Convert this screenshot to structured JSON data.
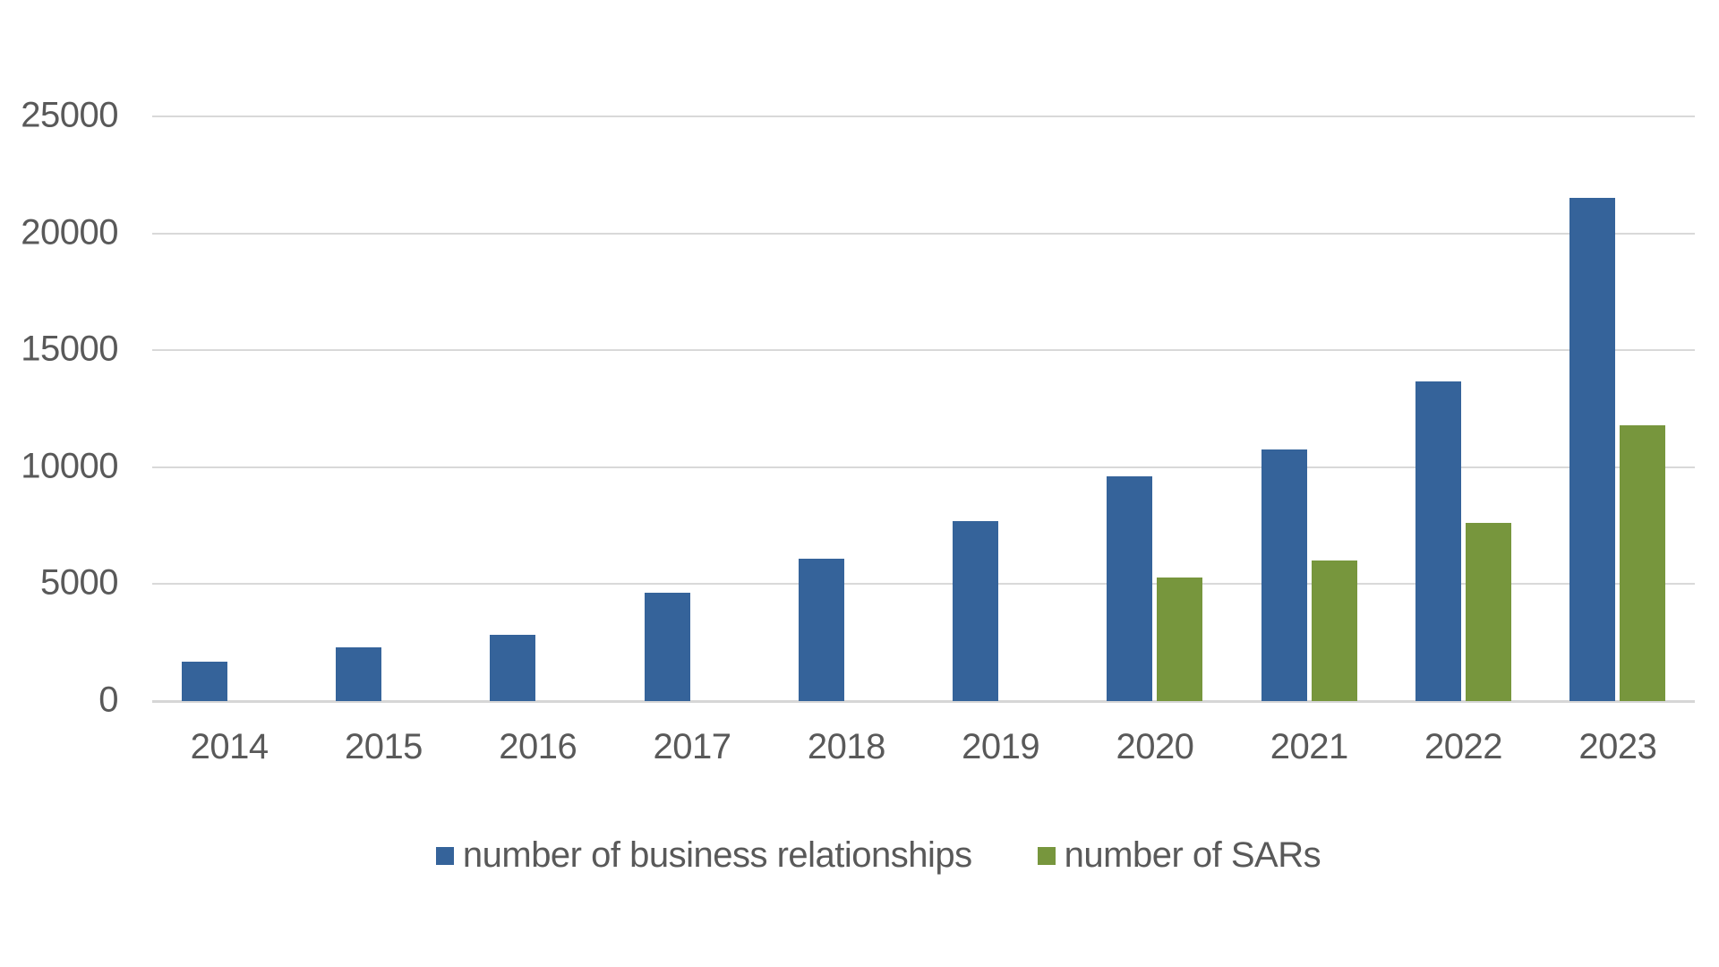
{
  "page": {
    "background_color": "#FFFFFF"
  },
  "chart_data": {
    "type": "bar",
    "title": "",
    "xlabel": "",
    "ylabel": "",
    "categories": [
      "2014",
      "2015",
      "2016",
      "2017",
      "2018",
      "2019",
      "2020",
      "2021",
      "2022",
      "2023"
    ],
    "series": [
      {
        "key": "business-relationships",
        "name": "number of business relationships",
        "color": "#35639A",
        "values": [
          1700,
          2300,
          2850,
          4650,
          6100,
          7700,
          9600,
          10750,
          13650,
          21500
        ]
      },
      {
        "key": "sars",
        "name": "number of SARs",
        "color": "#77963D",
        "values": [
          null,
          null,
          null,
          null,
          null,
          null,
          5300,
          6000,
          7600,
          11800
        ]
      }
    ],
    "ylim": [
      0,
      25000
    ],
    "yticks": [
      0,
      5000,
      10000,
      15000,
      20000,
      25000
    ],
    "grid": "horizontal-only",
    "gridline_color": "#D9D9D9",
    "baseline_color": "#D6D6D6",
    "axis_text_color": "#595959",
    "legend_position": "bottom-center"
  }
}
